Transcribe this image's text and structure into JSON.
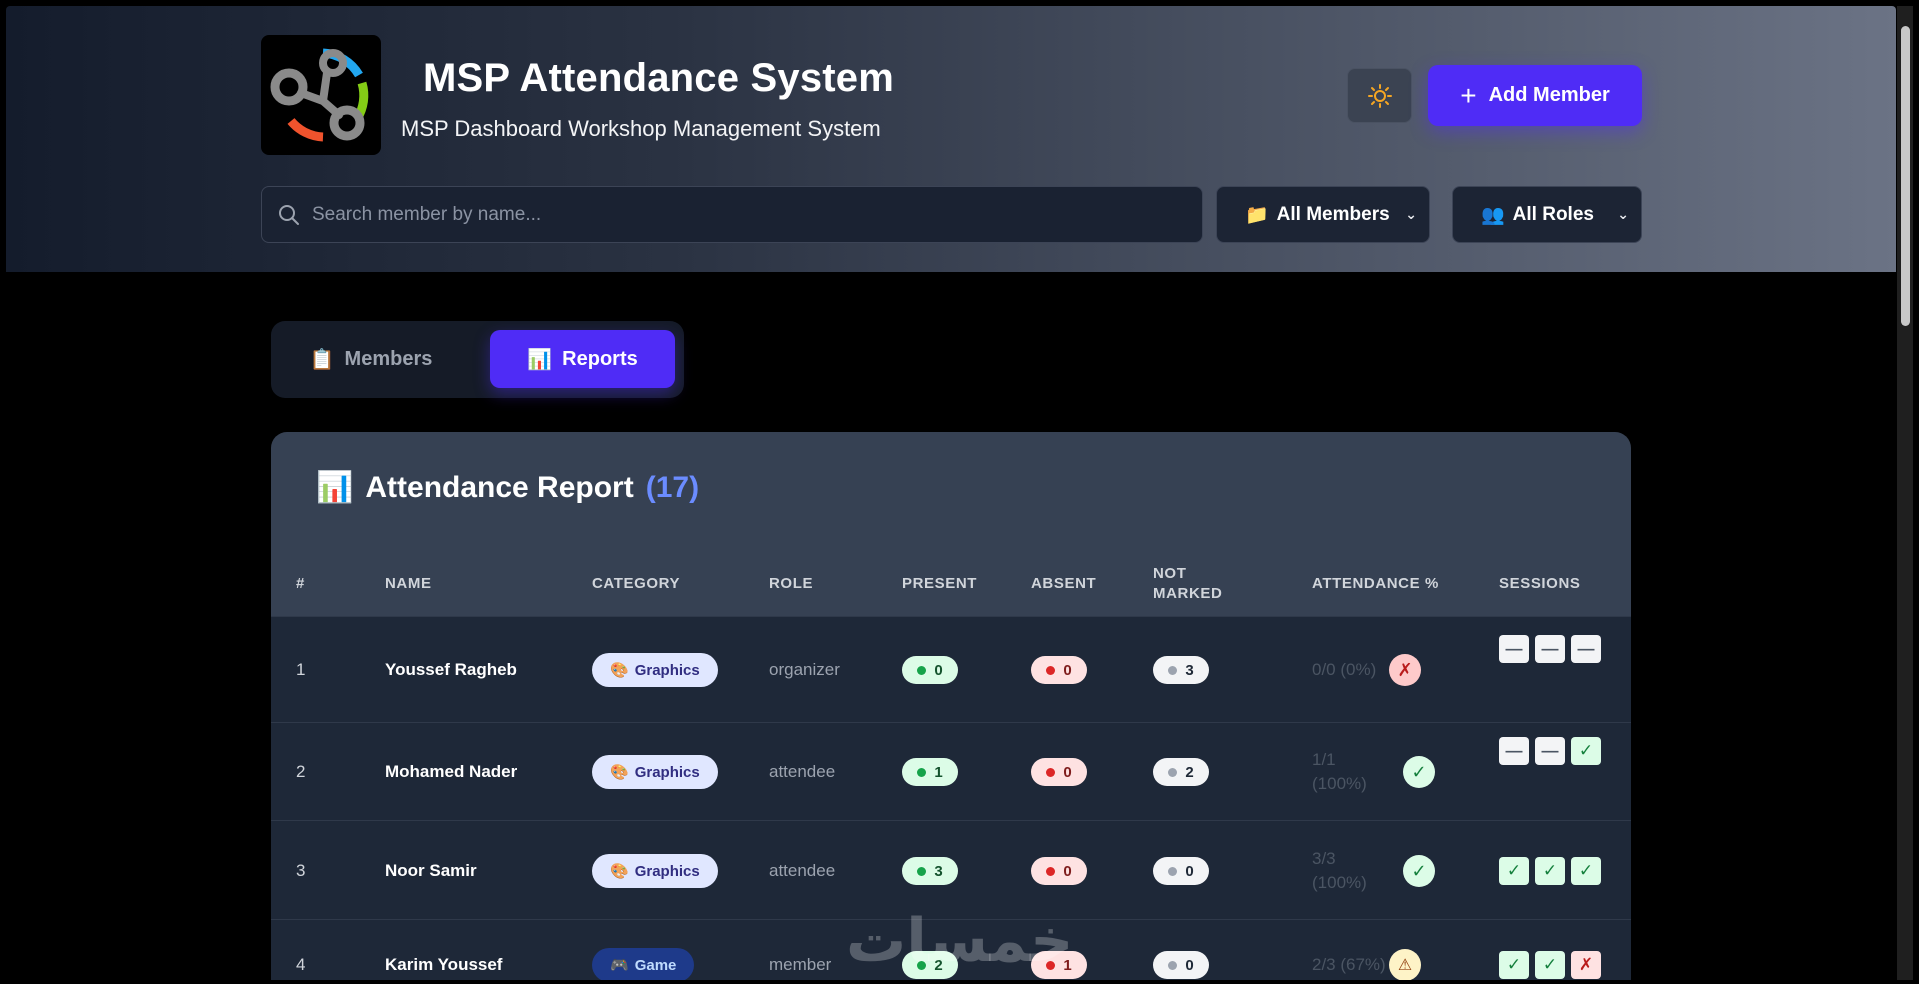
{
  "app": {
    "title": "MSP Attendance System",
    "subtitle": "MSP Dashboard Workshop Management System"
  },
  "header": {
    "theme_toggle_icon": "sun-icon",
    "add_member_label": "Add Member",
    "search_placeholder": "Search member by name...",
    "filter_members": "All Members",
    "filter_roles": "All Roles"
  },
  "tabs": [
    {
      "label": "Members",
      "active": false
    },
    {
      "label": "Reports",
      "active": true
    }
  ],
  "report": {
    "title": "Attendance Report",
    "count": "(17)",
    "columns": {
      "num": "#",
      "name": "NAME",
      "category": "CATEGORY",
      "role": "ROLE",
      "present": "PRESENT",
      "absent": "ABSENT",
      "not_marked_1": "NOT",
      "not_marked_2": "MARKED",
      "attendance": "ATTENDANCE %",
      "sessions": "SESSIONS"
    },
    "rows": [
      {
        "num": "1",
        "name": "Youssef Ragheb",
        "category": "Graphics",
        "role": "organizer",
        "present": "0",
        "absent": "0",
        "not_marked": "3",
        "attendance_1": "0/0 (0%)",
        "attendance_2": "",
        "status": "fail",
        "status_glyph": "✗",
        "sessions": [
          "—",
          "—",
          "—"
        ]
      },
      {
        "num": "2",
        "name": "Mohamed Nader",
        "category": "Graphics",
        "role": "attendee",
        "present": "1",
        "absent": "0",
        "not_marked": "2",
        "attendance_1": "1/1",
        "attendance_2": "(100%)",
        "status": "ok",
        "status_glyph": "✓",
        "sessions": [
          "—",
          "—",
          "✓"
        ]
      },
      {
        "num": "3",
        "name": "Noor Samir",
        "category": "Graphics",
        "role": "attendee",
        "present": "3",
        "absent": "0",
        "not_marked": "0",
        "attendance_1": "3/3",
        "attendance_2": "(100%)",
        "status": "ok",
        "status_glyph": "✓",
        "sessions": [
          "✓",
          "✓",
          "✓"
        ]
      },
      {
        "num": "4",
        "name": "Karim Youssef",
        "category": "Game",
        "role": "member",
        "present": "2",
        "absent": "1",
        "not_marked": "0",
        "attendance_1": "2/3 (67%)",
        "attendance_2": "",
        "status": "warn",
        "status_glyph": "⚠",
        "sessions": [
          "✓",
          "✓",
          "✗"
        ]
      }
    ]
  },
  "watermark": "خمسات"
}
